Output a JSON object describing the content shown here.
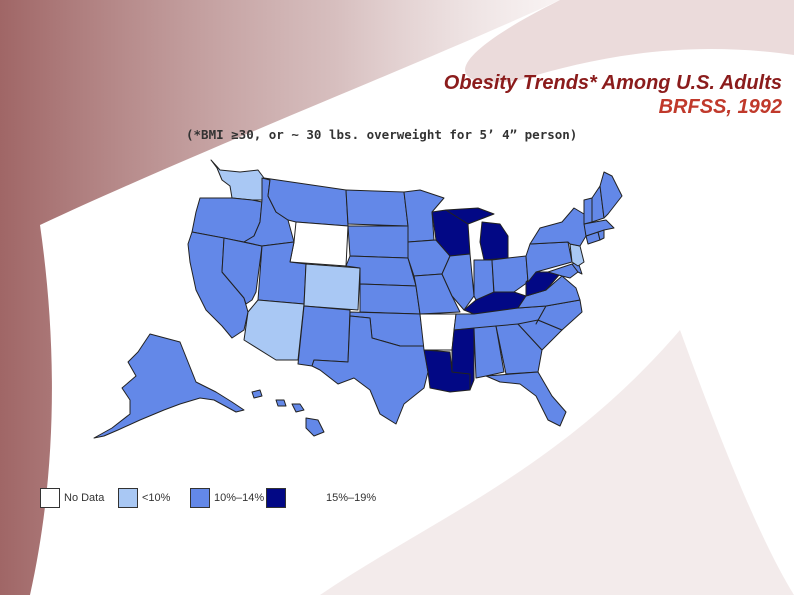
{
  "title": {
    "line1": "Obesity Trends* Among U.S. Adults",
    "line2": "BRFSS, 1992"
  },
  "subtitle": "(*BMI ≥30, or ~ 30 lbs. overweight for 5’ 4” person)",
  "colors": {
    "no_data": "#ffffff",
    "lt10": "#a9c8f4",
    "10_14": "#6388e8",
    "15_19": "#020885",
    "background_maroon": "#8f4b4b"
  },
  "legend": [
    {
      "key": "no_data",
      "label": "No Data"
    },
    {
      "key": "lt10",
      "label": "<10%"
    },
    {
      "key": "10_14",
      "label": "10%–14%"
    },
    {
      "key": "15_19",
      "label": "15%–19%"
    }
  ],
  "states": [
    {
      "name": "Washington",
      "category": "lt10"
    },
    {
      "name": "Oregon",
      "category": "10_14"
    },
    {
      "name": "California",
      "category": "10_14"
    },
    {
      "name": "Nevada",
      "category": "10_14"
    },
    {
      "name": "Idaho",
      "category": "10_14"
    },
    {
      "name": "Montana",
      "category": "10_14"
    },
    {
      "name": "Wyoming",
      "category": "no_data"
    },
    {
      "name": "Utah",
      "category": "10_14"
    },
    {
      "name": "Arizona",
      "category": "lt10"
    },
    {
      "name": "Colorado",
      "category": "lt10"
    },
    {
      "name": "New Mexico",
      "category": "10_14"
    },
    {
      "name": "North Dakota",
      "category": "10_14"
    },
    {
      "name": "South Dakota",
      "category": "10_14"
    },
    {
      "name": "Nebraska",
      "category": "10_14"
    },
    {
      "name": "Kansas",
      "category": "10_14"
    },
    {
      "name": "Oklahoma",
      "category": "10_14"
    },
    {
      "name": "Texas",
      "category": "10_14"
    },
    {
      "name": "Minnesota",
      "category": "10_14"
    },
    {
      "name": "Iowa",
      "category": "10_14"
    },
    {
      "name": "Missouri",
      "category": "10_14"
    },
    {
      "name": "Arkansas",
      "category": "no_data"
    },
    {
      "name": "Louisiana",
      "category": "15_19"
    },
    {
      "name": "Wisconsin",
      "category": "15_19"
    },
    {
      "name": "Illinois",
      "category": "10_14"
    },
    {
      "name": "Michigan",
      "category": "15_19"
    },
    {
      "name": "Indiana",
      "category": "10_14"
    },
    {
      "name": "Ohio",
      "category": "10_14"
    },
    {
      "name": "Kentucky",
      "category": "15_19"
    },
    {
      "name": "Tennessee",
      "category": "10_14"
    },
    {
      "name": "Mississippi",
      "category": "15_19"
    },
    {
      "name": "Alabama",
      "category": "10_14"
    },
    {
      "name": "Georgia",
      "category": "10_14"
    },
    {
      "name": "Florida",
      "category": "10_14"
    },
    {
      "name": "South Carolina",
      "category": "10_14"
    },
    {
      "name": "North Carolina",
      "category": "10_14"
    },
    {
      "name": "Virginia",
      "category": "10_14"
    },
    {
      "name": "West Virginia",
      "category": "15_19"
    },
    {
      "name": "Pennsylvania",
      "category": "10_14"
    },
    {
      "name": "New York",
      "category": "10_14"
    },
    {
      "name": "Maryland",
      "category": "10_14"
    },
    {
      "name": "Delaware",
      "category": "10_14"
    },
    {
      "name": "New Jersey",
      "category": "lt10"
    },
    {
      "name": "Connecticut",
      "category": "10_14"
    },
    {
      "name": "Rhode Island",
      "category": "10_14"
    },
    {
      "name": "Massachusetts",
      "category": "10_14"
    },
    {
      "name": "Vermont",
      "category": "10_14"
    },
    {
      "name": "New Hampshire",
      "category": "10_14"
    },
    {
      "name": "Maine",
      "category": "10_14"
    },
    {
      "name": "Alaska",
      "category": "10_14"
    },
    {
      "name": "Hawaii",
      "category": "10_14"
    }
  ]
}
